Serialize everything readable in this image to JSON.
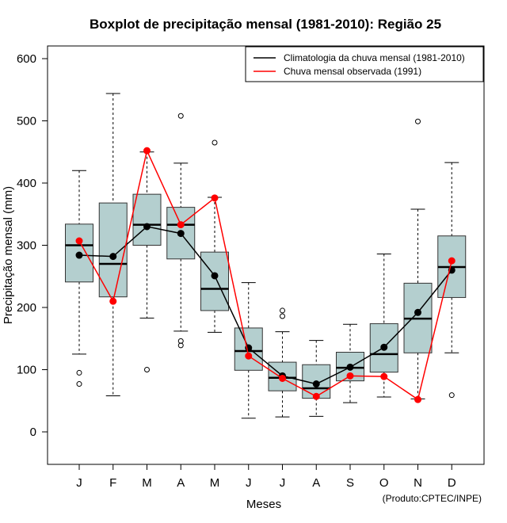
{
  "chart_data": {
    "type": "boxplot",
    "title": "Boxplot de precipitação mensal (1981-2010): Região 25",
    "xlabel": "Meses",
    "ylabel": "Precipitação mensal (mm)",
    "ylim": [
      -50,
      620
    ],
    "yticks": [
      0,
      100,
      200,
      300,
      400,
      500,
      600
    ],
    "categories": [
      "J",
      "F",
      "M",
      "A",
      "M",
      "J",
      "J",
      "A",
      "S",
      "O",
      "N",
      "D"
    ],
    "boxes": [
      {
        "whisker_low": 125,
        "q1": 241,
        "median": 300,
        "q3": 334,
        "whisker_high": 420,
        "outliers": [
          95,
          77
        ]
      },
      {
        "whisker_low": 58,
        "q1": 217,
        "median": 270,
        "q3": 368,
        "whisker_high": 544,
        "outliers": []
      },
      {
        "whisker_low": 183,
        "q1": 300,
        "median": 333,
        "q3": 382,
        "whisker_high": 450,
        "outliers": [
          100
        ]
      },
      {
        "whisker_low": 162,
        "q1": 278,
        "median": 333,
        "q3": 361,
        "whisker_high": 432,
        "outliers": [
          508,
          146,
          139
        ]
      },
      {
        "whisker_low": 160,
        "q1": 195,
        "median": 230,
        "q3": 289,
        "whisker_high": 377,
        "outliers": [
          465
        ]
      },
      {
        "whisker_low": 22,
        "q1": 99,
        "median": 130,
        "q3": 167,
        "whisker_high": 240,
        "outliers": []
      },
      {
        "whisker_low": 24,
        "q1": 66,
        "median": 87,
        "q3": 112,
        "whisker_high": 161,
        "outliers": [
          195,
          186
        ]
      },
      {
        "whisker_low": 25,
        "q1": 54,
        "median": 70,
        "q3": 108,
        "whisker_high": 147,
        "outliers": []
      },
      {
        "whisker_low": 47,
        "q1": 82,
        "median": 103,
        "q3": 128,
        "whisker_high": 173,
        "outliers": []
      },
      {
        "whisker_low": 56,
        "q1": 96,
        "median": 125,
        "q3": 174,
        "whisker_high": 286,
        "outliers": []
      },
      {
        "whisker_low": 53,
        "q1": 127,
        "median": 182,
        "q3": 239,
        "whisker_high": 358,
        "outliers": [
          499
        ]
      },
      {
        "whisker_low": 127,
        "q1": 216,
        "median": 265,
        "q3": 315,
        "whisker_high": 433,
        "outliers": [
          59
        ]
      }
    ],
    "series": [
      {
        "name": "Climatologia da chuva mensal (1981-2010)",
        "color": "#000000",
        "values": [
          284,
          282,
          330,
          319,
          251,
          135,
          90,
          77,
          104,
          136,
          192,
          260
        ]
      },
      {
        "name": "Chuva mensal observada (1991)",
        "color": "#ff0000",
        "values": [
          307,
          210,
          452,
          333,
          376,
          122,
          86,
          57,
          90,
          89,
          52,
          275
        ]
      }
    ],
    "legend_position": "top-right",
    "box_fill": "#b4cfcf",
    "credit": "(Produto:CPTEC/INPE)"
  }
}
